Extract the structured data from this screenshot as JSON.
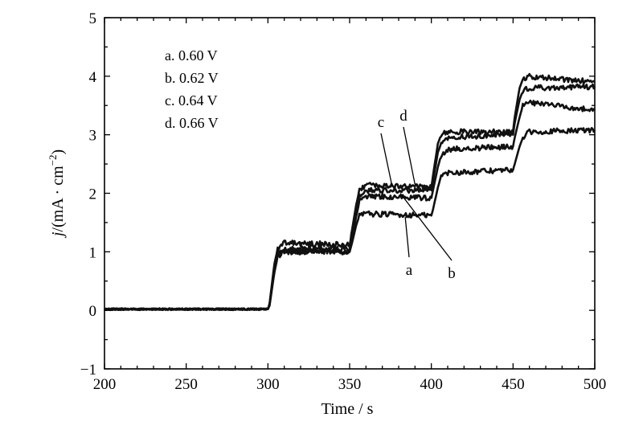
{
  "chart_data": {
    "type": "line",
    "xlabel": "Time / s",
    "ylabel_prefix": "j",
    "ylabel_rest": "/(mA · cm",
    "ylabel_sup": "−2",
    "ylabel_close": ")",
    "xlim": [
      200,
      500
    ],
    "ylim": [
      -1,
      5
    ],
    "xticks": [
      200,
      250,
      300,
      350,
      400,
      450,
      500
    ],
    "yticks": [
      -1,
      0,
      1,
      2,
      3,
      4,
      5
    ],
    "ytick_labels": [
      "−1",
      "0",
      "1",
      "2",
      "3",
      "4",
      "5"
    ],
    "grid": false,
    "legend_position": "top-left",
    "legend": [
      "a. 0.60 V",
      "b. 0.62 V",
      "c. 0.64 V",
      "d. 0.66 V"
    ],
    "series": [
      {
        "name": "a",
        "x": [
          200,
          300,
          301,
          304,
          306,
          310,
          350,
          351,
          354,
          356,
          360,
          400,
          401,
          404,
          406,
          410,
          450,
          451,
          454,
          456,
          460,
          500
        ],
        "y": [
          0.02,
          0.02,
          0.08,
          0.65,
          0.92,
          1.0,
          1.0,
          1.1,
          1.45,
          1.62,
          1.65,
          1.62,
          1.72,
          2.1,
          2.3,
          2.35,
          2.4,
          2.5,
          2.8,
          2.95,
          3.05,
          3.08
        ]
      },
      {
        "name": "b",
        "x": [
          200,
          300,
          301,
          304,
          306,
          310,
          350,
          351,
          354,
          356,
          360,
          400,
          401,
          404,
          406,
          410,
          450,
          451,
          454,
          456,
          460,
          500
        ],
        "y": [
          0.02,
          0.02,
          0.1,
          0.7,
          0.95,
          1.02,
          1.0,
          1.15,
          1.6,
          1.85,
          1.95,
          1.92,
          2.05,
          2.45,
          2.65,
          2.75,
          2.8,
          2.95,
          3.3,
          3.5,
          3.55,
          3.42
        ]
      },
      {
        "name": "c",
        "x": [
          200,
          300,
          301,
          304,
          306,
          310,
          350,
          351,
          354,
          356,
          360,
          400,
          401,
          404,
          406,
          410,
          450,
          451,
          454,
          456,
          460,
          500
        ],
        "y": [
          0.02,
          0.02,
          0.12,
          0.8,
          1.05,
          1.15,
          1.12,
          1.25,
          1.7,
          1.95,
          2.05,
          2.05,
          2.2,
          2.7,
          2.85,
          2.95,
          3.0,
          3.2,
          3.6,
          3.75,
          3.8,
          3.82
        ]
      },
      {
        "name": "d",
        "x": [
          200,
          300,
          301,
          304,
          306,
          310,
          350,
          351,
          354,
          356,
          360,
          400,
          401,
          404,
          406,
          410,
          450,
          451,
          454,
          456,
          460,
          500
        ],
        "y": [
          0.02,
          0.02,
          0.1,
          0.75,
          1.0,
          1.05,
          1.05,
          1.3,
          1.8,
          2.05,
          2.15,
          2.1,
          2.3,
          2.85,
          3.0,
          3.05,
          3.05,
          3.3,
          3.8,
          3.95,
          4.0,
          3.9
        ]
      }
    ],
    "annotations": [
      {
        "text": "a",
        "point_x": 384,
        "point_y": 1.6
      },
      {
        "text": "b",
        "point_x": 381,
        "point_y": 2.0
      },
      {
        "text": "c",
        "point_x": 376,
        "point_y": 2.12
      },
      {
        "text": "d",
        "point_x": 390,
        "point_y": 2.15
      }
    ]
  }
}
